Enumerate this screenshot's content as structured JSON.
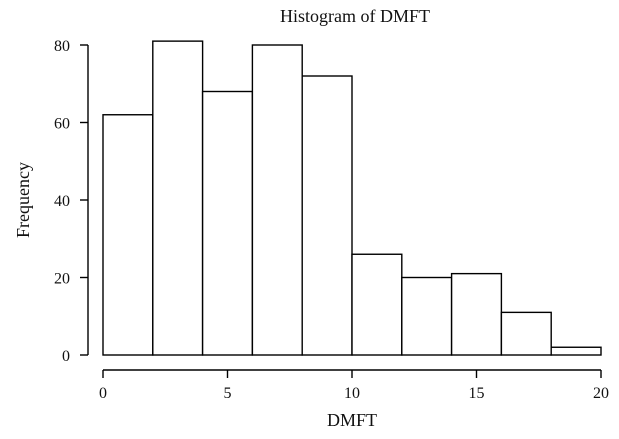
{
  "chart_data": {
    "type": "bar",
    "title": "Histogram of DMFT",
    "xlabel": "DMFT",
    "ylabel": "Frequency",
    "bins": [
      [
        0,
        2
      ],
      [
        2,
        4
      ],
      [
        4,
        6
      ],
      [
        6,
        8
      ],
      [
        8,
        10
      ],
      [
        10,
        12
      ],
      [
        12,
        14
      ],
      [
        14,
        16
      ],
      [
        16,
        18
      ],
      [
        18,
        20
      ]
    ],
    "values": [
      62,
      81,
      68,
      80,
      72,
      26,
      20,
      21,
      11,
      2
    ],
    "xlim": [
      0,
      20
    ],
    "ylim": [
      0,
      80
    ],
    "xticks": [
      0,
      5,
      10,
      15,
      20
    ],
    "yticks": [
      0,
      20,
      40,
      60,
      80
    ],
    "grid": false
  }
}
